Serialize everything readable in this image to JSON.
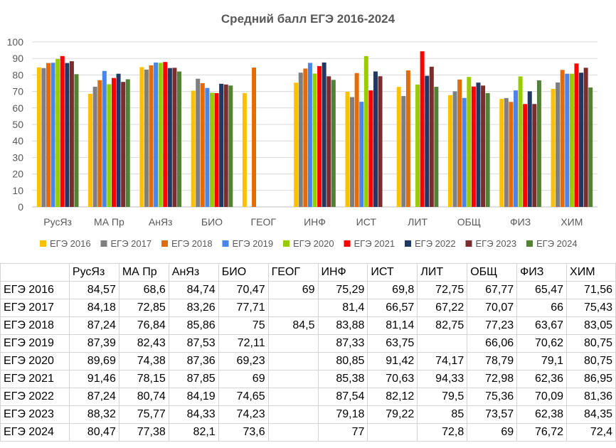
{
  "chart_data": {
    "type": "bar",
    "title": "Средний балл ЕГЭ 2016-2024",
    "categories": [
      "РусЯз",
      "МА Пр",
      "АнЯз",
      "БИО",
      "ГЕОГ",
      "ИНФ",
      "ИСТ",
      "ЛИТ",
      "ОБЩ",
      "ФИЗ",
      "ХИМ"
    ],
    "ylim": [
      0,
      100
    ],
    "yticks": [
      0,
      10,
      20,
      30,
      40,
      50,
      60,
      70,
      80,
      90,
      100
    ],
    "grid": true,
    "legend_position": "bottom",
    "series": [
      {
        "name": "ЕГЭ 2016",
        "color": "#FFC000",
        "values": [
          84.57,
          68.6,
          84.74,
          70.47,
          69,
          75.29,
          69.8,
          72.75,
          67.77,
          65.47,
          71.56
        ]
      },
      {
        "name": "ЕГЭ 2017",
        "color": "#7F7F7F",
        "values": [
          84.18,
          72.85,
          83.26,
          77.71,
          null,
          81.4,
          66.57,
          67.22,
          70.07,
          66,
          75.43
        ]
      },
      {
        "name": "ЕГЭ 2018",
        "color": "#E36C0A",
        "values": [
          87.24,
          76.84,
          85.86,
          75,
          84.5,
          83.88,
          81.14,
          82.75,
          77.23,
          63.67,
          83.05
        ]
      },
      {
        "name": "ЕГЭ 2019",
        "color": "#4A86E8",
        "values": [
          87.39,
          82.43,
          87.53,
          72.11,
          null,
          87.33,
          63.75,
          null,
          66.06,
          70.62,
          80.75
        ]
      },
      {
        "name": "ЕГЭ 2020",
        "color": "#99CC00",
        "values": [
          89.69,
          74.38,
          87.36,
          69.23,
          null,
          80.85,
          91.42,
          74.17,
          78.79,
          79.1,
          80.75
        ]
      },
      {
        "name": "ЕГЭ 2021",
        "color": "#FF0000",
        "values": [
          91.46,
          78.15,
          87.85,
          69,
          null,
          85.38,
          70.63,
          94.33,
          72.98,
          62.36,
          86.95
        ]
      },
      {
        "name": "ЕГЭ 2022",
        "color": "#203864",
        "values": [
          87.24,
          80.74,
          84.19,
          74.65,
          null,
          87.54,
          82.12,
          79.5,
          75.36,
          70.09,
          81.36
        ]
      },
      {
        "name": "ЕГЭ 2023",
        "color": "#7B2C2C",
        "values": [
          88.32,
          75.77,
          84.33,
          74.23,
          null,
          79.18,
          79.22,
          85,
          73.57,
          62.38,
          84.35
        ]
      },
      {
        "name": "ЕГЭ 2024",
        "color": "#548235",
        "values": [
          80.47,
          77.38,
          82.1,
          73.6,
          null,
          77,
          null,
          72.8,
          69,
          76.72,
          72.4
        ]
      }
    ]
  },
  "table": {
    "columns": [
      "",
      "РусЯз",
      "МА Пр",
      "АнЯз",
      "БИО",
      "ГЕОГ",
      "ИНФ",
      "ИСТ",
      "ЛИТ",
      "ОБЩ",
      "ФИЗ",
      "ХИМ"
    ],
    "rows": [
      [
        "ЕГЭ 2016",
        "84,57",
        "68,6",
        "84,74",
        "70,47",
        "69",
        "75,29",
        "69,8",
        "72,75",
        "67,77",
        "65,47",
        "71,56"
      ],
      [
        "ЕГЭ 2017",
        "84,18",
        "72,85",
        "83,26",
        "77,71",
        "",
        "81,4",
        "66,57",
        "67,22",
        "70,07",
        "66",
        "75,43"
      ],
      [
        "ЕГЭ 2018",
        "87,24",
        "76,84",
        "85,86",
        "75",
        "84,5",
        "83,88",
        "81,14",
        "82,75",
        "77,23",
        "63,67",
        "83,05"
      ],
      [
        "ЕГЭ 2019",
        "87,39",
        "82,43",
        "87,53",
        "72,11",
        "",
        "87,33",
        "63,75",
        "",
        "66,06",
        "70,62",
        "80,75"
      ],
      [
        "ЕГЭ 2020",
        "89,69",
        "74,38",
        "87,36",
        "69,23",
        "",
        "80,85",
        "91,42",
        "74,17",
        "78,79",
        "79,1",
        "80,75"
      ],
      [
        "ЕГЭ 2021",
        "91,46",
        "78,15",
        "87,85",
        "69",
        "",
        "85,38",
        "70,63",
        "94,33",
        "72,98",
        "62,36",
        "86,95"
      ],
      [
        "ЕГЭ 2022",
        "87,24",
        "80,74",
        "84,19",
        "74,65",
        "",
        "87,54",
        "82,12",
        "79,5",
        "75,36",
        "70,09",
        "81,36"
      ],
      [
        "ЕГЭ 2023",
        "88,32",
        "75,77",
        "84,33",
        "74,23",
        "",
        "79,18",
        "79,22",
        "85",
        "73,57",
        "62,38",
        "84,35"
      ],
      [
        "ЕГЭ 2024",
        "80,47",
        "77,38",
        "82,1",
        "73,6",
        "",
        "77",
        "",
        "72,8",
        "69",
        "76,72",
        "72,4"
      ]
    ]
  }
}
